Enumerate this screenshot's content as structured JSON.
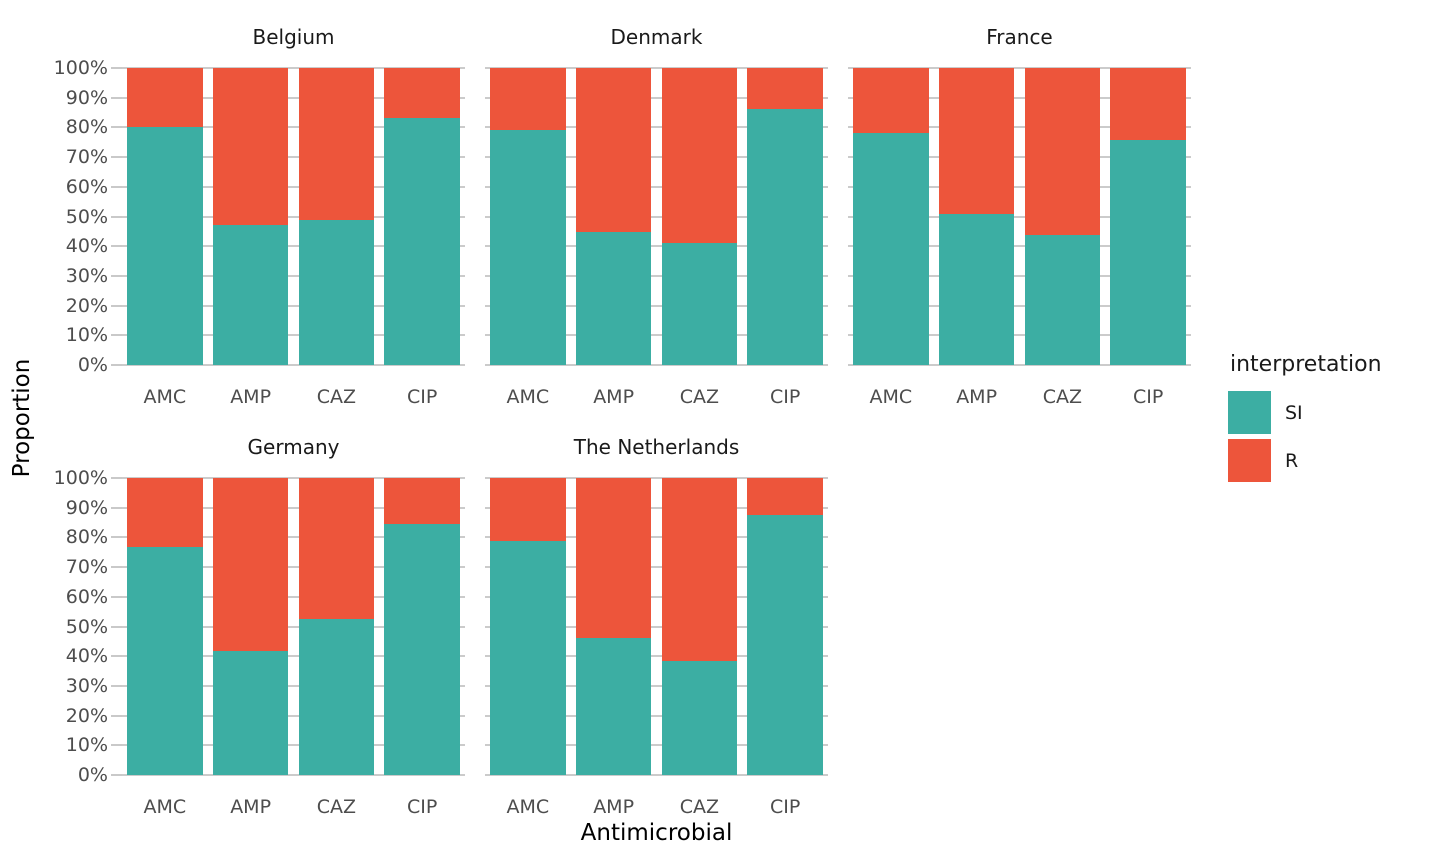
{
  "figure": {
    "y_axis_title": "Proportion",
    "x_axis_title": "Antimicrobial"
  },
  "legend": {
    "title": "interpretation",
    "position": "right",
    "items": [
      {
        "label": "SI",
        "color": "#3CAEA3"
      },
      {
        "label": "R",
        "color": "#ED553B"
      }
    ]
  },
  "chart_data": {
    "type": "bar",
    "stacked": true,
    "normalized_percent": true,
    "title": "",
    "xlabel": "Antimicrobial",
    "ylabel": "Proportion",
    "ylim": [
      0,
      100
    ],
    "grid": "horizontal-major",
    "categories": [
      "AMC",
      "AMP",
      "CAZ",
      "CIP"
    ],
    "y_ticks": [
      "100%",
      "90%",
      "80%",
      "70%",
      "60%",
      "50%",
      "40%",
      "30%",
      "20%",
      "10%",
      "0%"
    ],
    "series_colors": {
      "SI": "#3CAEA3",
      "R": "#ED553B"
    },
    "facets": [
      {
        "name": "Belgium",
        "series": {
          "SI": [
            80.0,
            47.3,
            48.8,
            83.3
          ],
          "R": [
            20.0,
            52.7,
            51.2,
            16.7
          ]
        }
      },
      {
        "name": "Denmark",
        "series": {
          "SI": [
            79.2,
            44.9,
            41.2,
            86.2
          ],
          "R": [
            20.8,
            55.1,
            58.8,
            13.8
          ]
        }
      },
      {
        "name": "France",
        "series": {
          "SI": [
            78.0,
            50.9,
            43.7,
            75.6
          ],
          "R": [
            22.0,
            49.1,
            56.3,
            24.4
          ]
        }
      },
      {
        "name": "Germany",
        "series": {
          "SI": [
            76.9,
            41.9,
            52.5,
            84.4
          ],
          "R": [
            23.1,
            58.1,
            47.5,
            15.6
          ]
        }
      },
      {
        "name": "The Netherlands",
        "series": {
          "SI": [
            78.8,
            46.0,
            38.5,
            87.6
          ],
          "R": [
            21.2,
            54.0,
            61.5,
            12.4
          ]
        }
      }
    ]
  }
}
